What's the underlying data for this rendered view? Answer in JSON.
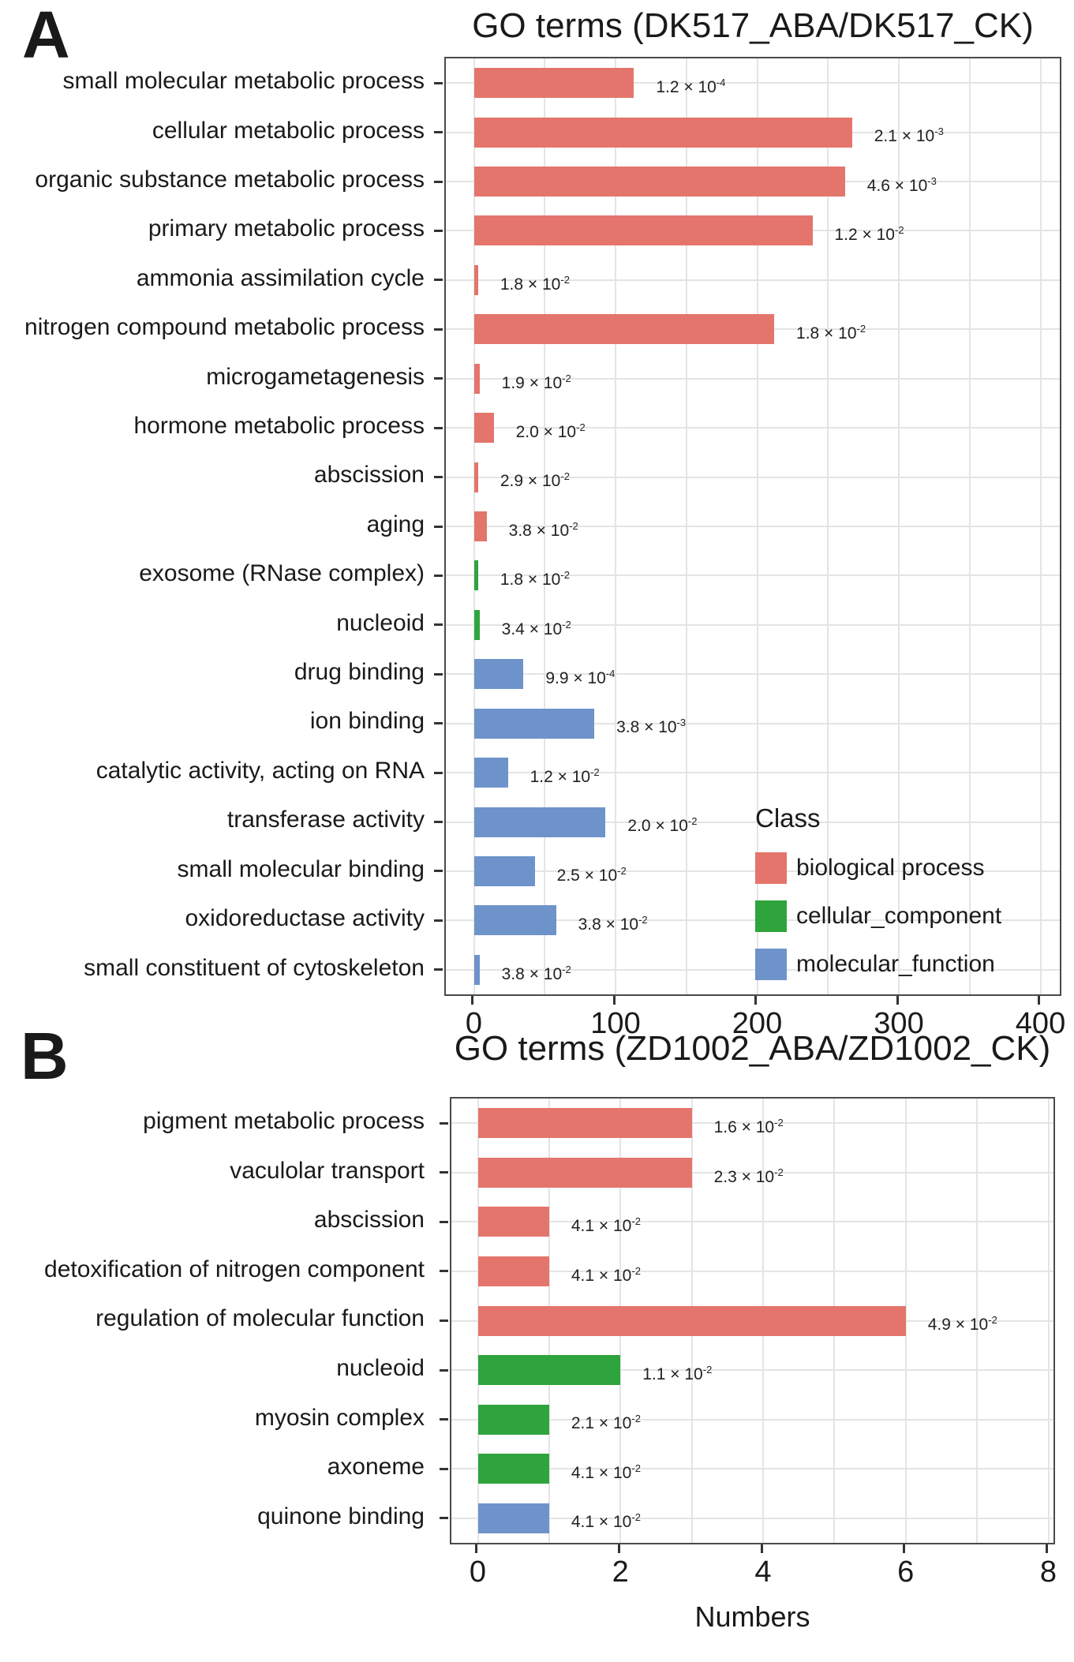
{
  "page": {
    "panel_a_label": "A",
    "panel_b_label": "B"
  },
  "colors": {
    "biological_process": "#E4756C",
    "cellular_component": "#2FA43C",
    "molecular_function": "#6E93CB",
    "gridline": "#E4E4E4",
    "panel_border": "#4A4A4A",
    "tick": "#333333",
    "text": "#1A1A1A"
  },
  "legend": {
    "title": "Class",
    "items": [
      {
        "label": "biological process",
        "class": "biological_process"
      },
      {
        "label": "cellular_component",
        "class": "cellular_component"
      },
      {
        "label": "molecular_function",
        "class": "molecular_function"
      }
    ]
  },
  "chart_data": [
    {
      "type": "bar",
      "orientation": "horizontal",
      "title": "GO terms (DK517_ABA/DK517_CK)",
      "xlabel": "",
      "ylabel": "",
      "xlim": [
        0,
        400
      ],
      "x_major_ticks": [
        0,
        100,
        200,
        300,
        400
      ],
      "x_minor_step": 50,
      "grid": true,
      "legend_position": "inside bottom-right",
      "bars": [
        {
          "label": "small molecular metabolic process",
          "value": 113,
          "class": "biological_process",
          "p": "1.2",
          "p_exp": "-4"
        },
        {
          "label": "cellular metabolic process",
          "value": 267,
          "class": "biological_process",
          "p": "2.1",
          "p_exp": "-3"
        },
        {
          "label": "organic substance metabolic process",
          "value": 262,
          "class": "biological_process",
          "p": "4.6",
          "p_exp": "-3"
        },
        {
          "label": "primary metabolic process",
          "value": 239,
          "class": "biological_process",
          "p": "1.2",
          "p_exp": "-2"
        },
        {
          "label": "ammonia assimilation cycle",
          "value": 3,
          "class": "biological_process",
          "p": "1.8",
          "p_exp": "-2"
        },
        {
          "label": "nitrogen compound metabolic process",
          "value": 212,
          "class": "biological_process",
          "p": "1.8",
          "p_exp": "-2"
        },
        {
          "label": "microgametagenesis",
          "value": 4,
          "class": "biological_process",
          "p": "1.9",
          "p_exp": "-2"
        },
        {
          "label": "hormone metabolic process",
          "value": 14,
          "class": "biological_process",
          "p": "2.0",
          "p_exp": "-2"
        },
        {
          "label": "abscission",
          "value": 3,
          "class": "biological_process",
          "p": "2.9",
          "p_exp": "-2"
        },
        {
          "label": "aging",
          "value": 9,
          "class": "biological_process",
          "p": "3.8",
          "p_exp": "-2"
        },
        {
          "label": "exosome (RNase complex)",
          "value": 3,
          "class": "cellular_component",
          "p": "1.8",
          "p_exp": "-2"
        },
        {
          "label": "nucleoid",
          "value": 4,
          "class": "cellular_component",
          "p": "3.4",
          "p_exp": "-2"
        },
        {
          "label": "drug binding",
          "value": 35,
          "class": "molecular_function",
          "p": "9.9",
          "p_exp": "-4"
        },
        {
          "label": "ion binding",
          "value": 85,
          "class": "molecular_function",
          "p": "3.8",
          "p_exp": "-3"
        },
        {
          "label": "catalytic activity, acting on RNA",
          "value": 24,
          "class": "molecular_function",
          "p": "1.2",
          "p_exp": "-2"
        },
        {
          "label": "transferase activity",
          "value": 93,
          "class": "molecular_function",
          "p": "2.0",
          "p_exp": "-2"
        },
        {
          "label": "small molecular binding",
          "value": 43,
          "class": "molecular_function",
          "p": "2.5",
          "p_exp": "-2"
        },
        {
          "label": "oxidoreductase activity",
          "value": 58,
          "class": "molecular_function",
          "p": "3.8",
          "p_exp": "-2"
        },
        {
          "label": "small constituent of cytoskeleton",
          "value": 4,
          "class": "molecular_function",
          "p": "3.8",
          "p_exp": "-2"
        }
      ]
    },
    {
      "type": "bar",
      "orientation": "horizontal",
      "title": "GO terms (ZD1002_ABA/ZD1002_CK)",
      "xlabel": "Numbers",
      "ylabel": "",
      "xlim": [
        0,
        8
      ],
      "x_major_ticks": [
        0,
        2,
        4,
        6,
        8
      ],
      "x_minor_step": 1,
      "grid": true,
      "legend_position": "none",
      "bars": [
        {
          "label": "pigment metabolic process",
          "value": 3,
          "class": "biological_process",
          "p": "1.6",
          "p_exp": "-2"
        },
        {
          "label": "vaculolar transport",
          "value": 3,
          "class": "biological_process",
          "p": "2.3",
          "p_exp": "-2"
        },
        {
          "label": "abscission",
          "value": 1,
          "class": "biological_process",
          "p": "4.1",
          "p_exp": "-2"
        },
        {
          "label": "detoxification of nitrogen component",
          "value": 1,
          "class": "biological_process",
          "p": "4.1",
          "p_exp": "-2"
        },
        {
          "label": "regulation of molecular function",
          "value": 6,
          "class": "biological_process",
          "p": "4.9",
          "p_exp": "-2"
        },
        {
          "label": "nucleoid",
          "value": 2,
          "class": "cellular_component",
          "p": "1.1",
          "p_exp": "-2"
        },
        {
          "label": "myosin complex",
          "value": 1,
          "class": "cellular_component",
          "p": "2.1",
          "p_exp": "-2"
        },
        {
          "label": "axoneme",
          "value": 1,
          "class": "cellular_component",
          "p": "4.1",
          "p_exp": "-2"
        },
        {
          "label": "quinone binding",
          "value": 1,
          "class": "molecular_function",
          "p": "4.1",
          "p_exp": "-2"
        }
      ]
    }
  ]
}
